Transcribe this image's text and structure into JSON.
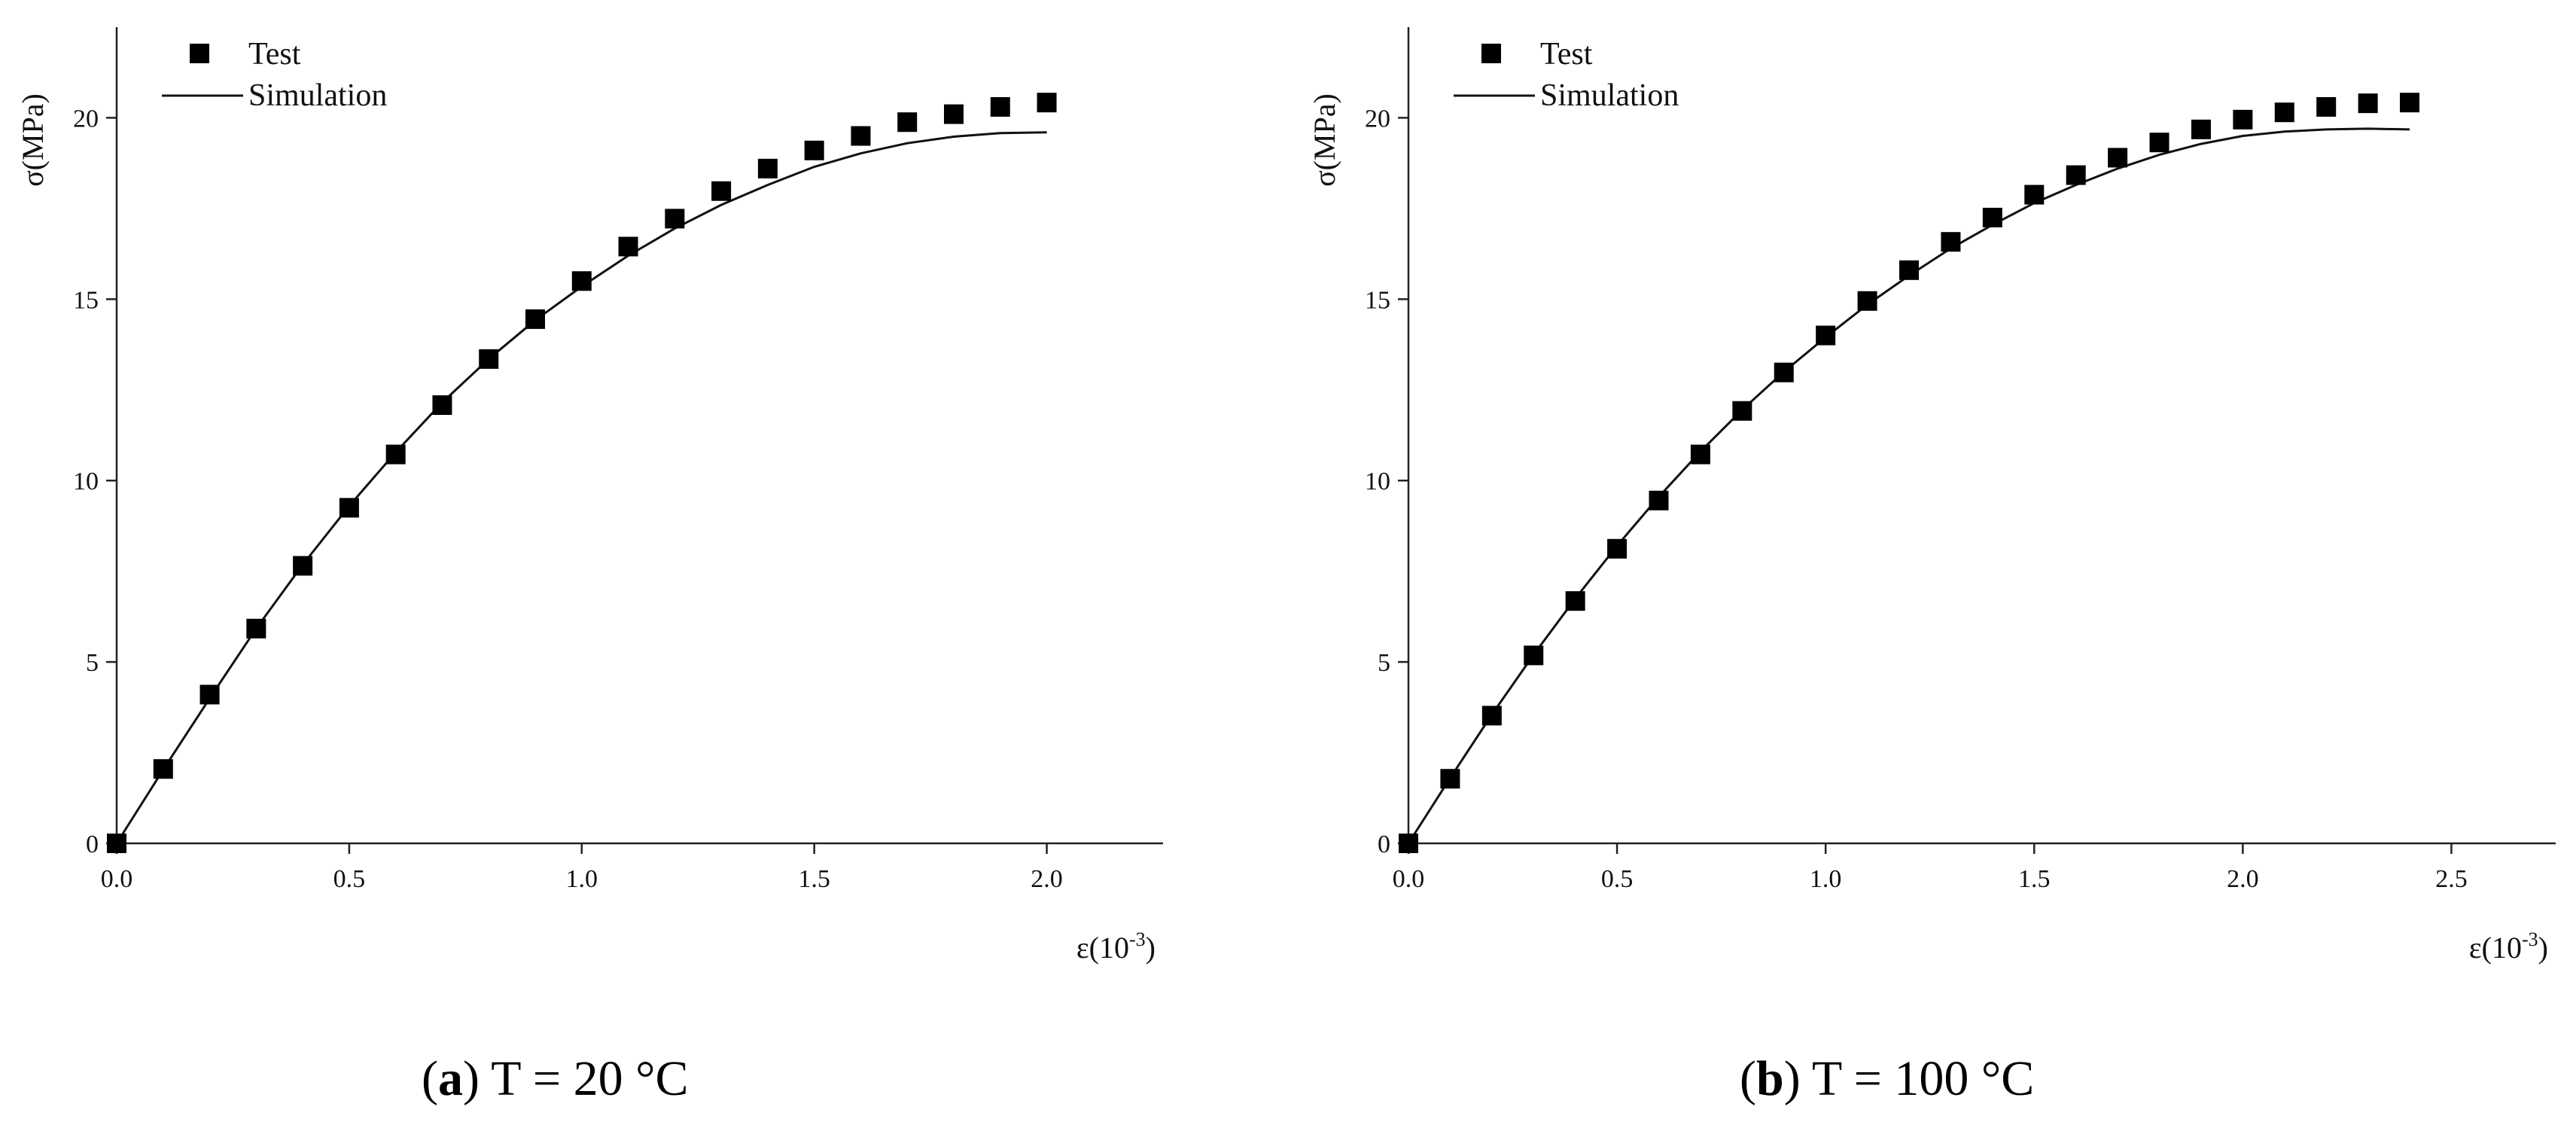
{
  "chart_data": [
    {
      "type": "scatter+line",
      "panel_label": "a",
      "caption": "T = 20 °C",
      "ylabel": "σ(MPa)",
      "xlabel_base": "ε(10",
      "xlabel_exp": "-3",
      "xlabel_close": ")",
      "xlim": [
        0,
        2.25
      ],
      "ylim": [
        0,
        22.5
      ],
      "xticks": [
        0.0,
        0.5,
        1.0,
        1.5,
        2.0
      ],
      "xtick_labels": [
        "0.0",
        "0.5",
        "1.0",
        "1.5",
        "2.0"
      ],
      "yticks": [
        0,
        5,
        10,
        15,
        20
      ],
      "ytick_labels": [
        "0",
        "5",
        "10",
        "15",
        "20"
      ],
      "legend": {
        "position": "top-left",
        "entries": [
          "Test",
          "Simulation"
        ]
      },
      "series": [
        {
          "name": "Test",
          "style": "square-markers",
          "x": [
            0.0,
            0.1,
            0.2,
            0.3,
            0.4,
            0.5,
            0.6,
            0.7,
            0.8,
            0.9,
            1.0,
            1.1,
            1.2,
            1.3,
            1.4,
            1.5,
            1.6,
            1.7,
            1.8,
            1.9,
            2.0
          ],
          "y": [
            0.0,
            2.05,
            4.1,
            5.92,
            7.65,
            9.25,
            10.72,
            12.08,
            13.35,
            14.45,
            15.5,
            16.45,
            17.22,
            17.98,
            18.6,
            19.1,
            19.5,
            19.88,
            20.1,
            20.3,
            20.42
          ]
        },
        {
          "name": "Simulation",
          "style": "line",
          "x": [
            0.0,
            0.1,
            0.2,
            0.3,
            0.4,
            0.5,
            0.6,
            0.7,
            0.8,
            0.9,
            1.0,
            1.1,
            1.2,
            1.3,
            1.4,
            1.5,
            1.6,
            1.7,
            1.8,
            1.9,
            2.0
          ],
          "y": [
            0.0,
            2.03,
            4.0,
            5.92,
            7.68,
            9.3,
            10.78,
            12.15,
            13.35,
            14.42,
            15.35,
            16.2,
            16.95,
            17.6,
            18.15,
            18.65,
            19.02,
            19.3,
            19.48,
            19.58,
            19.6
          ]
        }
      ]
    },
    {
      "type": "scatter+line",
      "panel_label": "b",
      "caption": "T = 100 °C",
      "ylabel": "σ(MPa)",
      "xlabel_base": "ε(10",
      "xlabel_exp": "-3",
      "xlabel_close": ")",
      "xlim": [
        0,
        2.75
      ],
      "ylim": [
        0,
        22.5
      ],
      "xticks": [
        0.0,
        0.5,
        1.0,
        1.5,
        2.0,
        2.5
      ],
      "xtick_labels": [
        "0.0",
        "0.5",
        "1.0",
        "1.5",
        "2.0",
        "2.5"
      ],
      "yticks": [
        0,
        5,
        10,
        15,
        20
      ],
      "ytick_labels": [
        "0",
        "5",
        "10",
        "15",
        "20"
      ],
      "legend": {
        "position": "top-left",
        "entries": [
          "Test",
          "Simulation"
        ]
      },
      "series": [
        {
          "name": "Test",
          "style": "square-markers",
          "x": [
            0.0,
            0.1,
            0.2,
            0.3,
            0.4,
            0.5,
            0.6,
            0.7,
            0.8,
            0.9,
            1.0,
            1.1,
            1.2,
            1.3,
            1.4,
            1.5,
            1.6,
            1.7,
            1.8,
            1.9,
            2.0,
            2.1,
            2.2,
            2.3,
            2.4
          ],
          "y": [
            0.0,
            1.78,
            3.52,
            5.18,
            6.68,
            8.12,
            9.45,
            10.72,
            11.92,
            12.98,
            14.0,
            14.95,
            15.8,
            16.58,
            17.25,
            17.88,
            18.42,
            18.9,
            19.32,
            19.68,
            19.95,
            20.15,
            20.3,
            20.4,
            20.42
          ]
        },
        {
          "name": "Simulation",
          "style": "line",
          "x": [
            0.0,
            0.1,
            0.2,
            0.3,
            0.4,
            0.5,
            0.6,
            0.7,
            0.8,
            0.9,
            1.0,
            1.1,
            1.2,
            1.3,
            1.4,
            1.5,
            1.6,
            1.7,
            1.8,
            1.9,
            2.0,
            2.1,
            2.2,
            2.3,
            2.4
          ],
          "y": [
            0.0,
            1.8,
            3.55,
            5.2,
            6.75,
            8.2,
            9.55,
            10.8,
            11.95,
            13.0,
            13.95,
            14.85,
            15.65,
            16.4,
            17.05,
            17.65,
            18.15,
            18.6,
            18.98,
            19.28,
            19.5,
            19.62,
            19.68,
            19.7,
            19.68
          ]
        }
      ]
    }
  ]
}
